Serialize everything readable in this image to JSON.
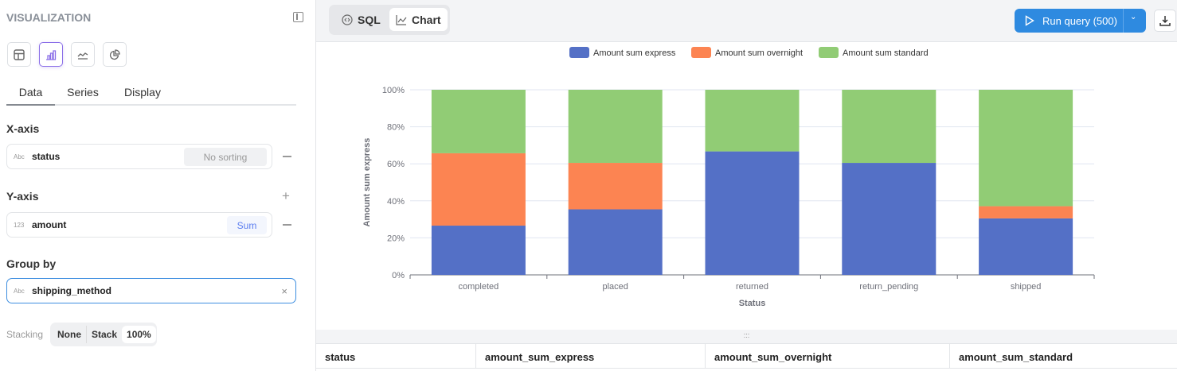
{
  "sidebar": {
    "title": "VISUALIZATION",
    "viz_types": [
      {
        "icon": "table-icon"
      },
      {
        "icon": "bar-chart-icon",
        "active": true
      },
      {
        "icon": "line-chart-icon"
      },
      {
        "icon": "pie-chart-icon"
      }
    ],
    "tabs": [
      {
        "label": "Data",
        "active": true
      },
      {
        "label": "Series"
      },
      {
        "label": "Display"
      }
    ],
    "x_axis": {
      "heading": "X-axis",
      "type": "Abc",
      "field": "status",
      "sort": "No sorting"
    },
    "y_axis": {
      "heading": "Y-axis",
      "type": "123",
      "field": "amount",
      "agg": "Sum"
    },
    "group_by": {
      "heading": "Group by",
      "type": "Abc",
      "field": "shipping_method"
    },
    "stacking": {
      "label": "Stacking",
      "options": [
        "None",
        "Stack",
        "100%"
      ],
      "selected": "100%"
    }
  },
  "toolbar": {
    "sql": "SQL",
    "chart": "Chart",
    "active": "Chart",
    "run": "Run query (500)"
  },
  "divider": ":::",
  "table": {
    "columns": [
      "status",
      "amount_sum_express",
      "amount_sum_overnight",
      "amount_sum_standard"
    ]
  },
  "chart_data": {
    "type": "bar",
    "stacked": "percent",
    "categories": [
      "completed",
      "placed",
      "returned",
      "return_pending",
      "shipped"
    ],
    "series": [
      {
        "name": "Amount sum express",
        "color": "#5470c6",
        "values": [
          26.6,
          35.4,
          66.7,
          60.5,
          30.5
        ]
      },
      {
        "name": "Amount sum overnight",
        "color": "#fc8452",
        "values": [
          39.1,
          25.1,
          0,
          0,
          6.6
        ]
      },
      {
        "name": "Amount sum standard",
        "color": "#91cc75",
        "values": [
          34.3,
          39.5,
          33.3,
          39.5,
          62.9
        ]
      }
    ],
    "xlabel": "Status",
    "ylabel": "Amount sum express",
    "ylim": [
      0,
      100
    ],
    "yticks": [
      "0%",
      "20%",
      "40%",
      "60%",
      "80%",
      "100%"
    ],
    "grid": true,
    "legend": "top"
  }
}
